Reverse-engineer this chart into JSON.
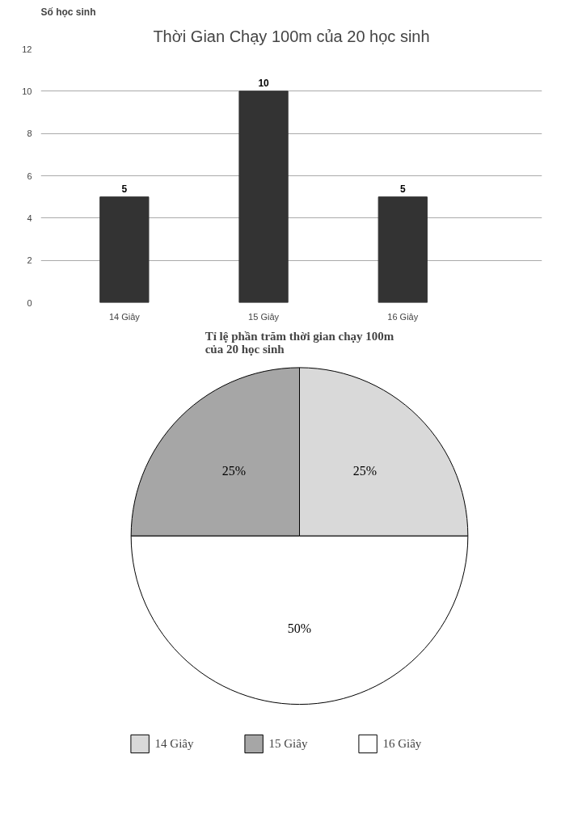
{
  "chart_data": [
    {
      "type": "bar",
      "title": "Thời Gian Chạy 100m của 20 học sinh",
      "ylabel": "Số học sinh",
      "categories": [
        "14 Giây",
        "15 Giây",
        "16 Giây"
      ],
      "values": [
        5,
        10,
        5
      ],
      "color": "#333333",
      "ylim": [
        0,
        12
      ],
      "yticks": [
        0,
        2,
        4,
        6,
        8,
        10,
        12
      ],
      "grid": "y",
      "data_labels": true
    },
    {
      "type": "pie",
      "title": "Tỉ lệ phần trăm thời gian chạy 100m\ncủa 20 học sinh",
      "categories": [
        "14 Giây",
        "15 Giây",
        "16 Giây"
      ],
      "values": [
        25,
        25,
        50
      ],
      "value_labels": [
        "25%",
        "25%",
        "50%"
      ],
      "colors": [
        "#d9d9d9",
        "#a6a6a6",
        "#ffffff"
      ],
      "legend": "bottom"
    }
  ]
}
